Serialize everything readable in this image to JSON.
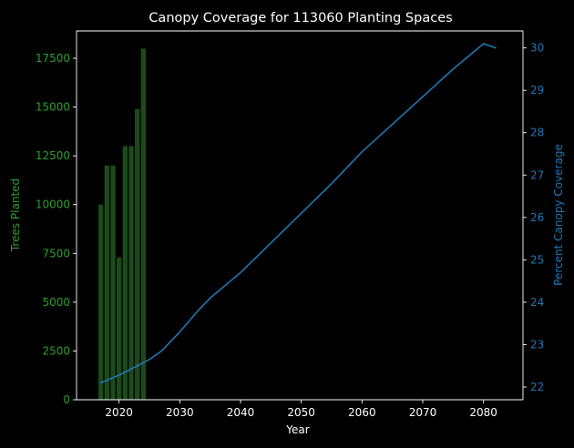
{
  "chart_data": {
    "type": "bar+line",
    "title": "Canopy Coverage for 113060 Planting Spaces",
    "xlabel": "Year",
    "ylabel_left": "Trees Planted",
    "ylabel_right": "Percent Canopy Coverage",
    "xlim": [
      2013.0,
      2086.5
    ],
    "ylim_left": [
      0,
      18900
    ],
    "ylim_right": [
      21.7,
      30.4
    ],
    "x_ticks": [
      2020,
      2030,
      2040,
      2050,
      2060,
      2070,
      2080
    ],
    "y_left_ticks": [
      0,
      2500,
      5000,
      7500,
      10000,
      12500,
      15000,
      17500
    ],
    "y_right_ticks": [
      22,
      23,
      24,
      25,
      26,
      27,
      28,
      29,
      30
    ],
    "grid": false,
    "colors": {
      "background": "#000000",
      "bar": "#1c4a1c",
      "bar_axis": "#2ca02c",
      "line": "#1f77b4",
      "text": "#ffffff",
      "spine": "#ffffff"
    },
    "bars": {
      "name": "Trees Planted",
      "x": [
        2017,
        2018,
        2019,
        2020,
        2021,
        2022,
        2023,
        2024
      ],
      "values": [
        10000,
        12000,
        12000,
        7300,
        13000,
        13000,
        14900,
        18000
      ]
    },
    "line": {
      "name": "Percent Canopy Coverage",
      "x": [
        2017,
        2020,
        2023,
        2025,
        2027,
        2030,
        2033,
        2035,
        2040,
        2045,
        2050,
        2055,
        2060,
        2065,
        2070,
        2075,
        2080,
        2082
      ],
      "values": [
        22.1,
        22.28,
        22.5,
        22.65,
        22.85,
        23.3,
        23.8,
        24.1,
        24.7,
        25.4,
        26.1,
        26.8,
        27.55,
        28.2,
        28.85,
        29.5,
        30.1,
        30.0
      ]
    }
  }
}
